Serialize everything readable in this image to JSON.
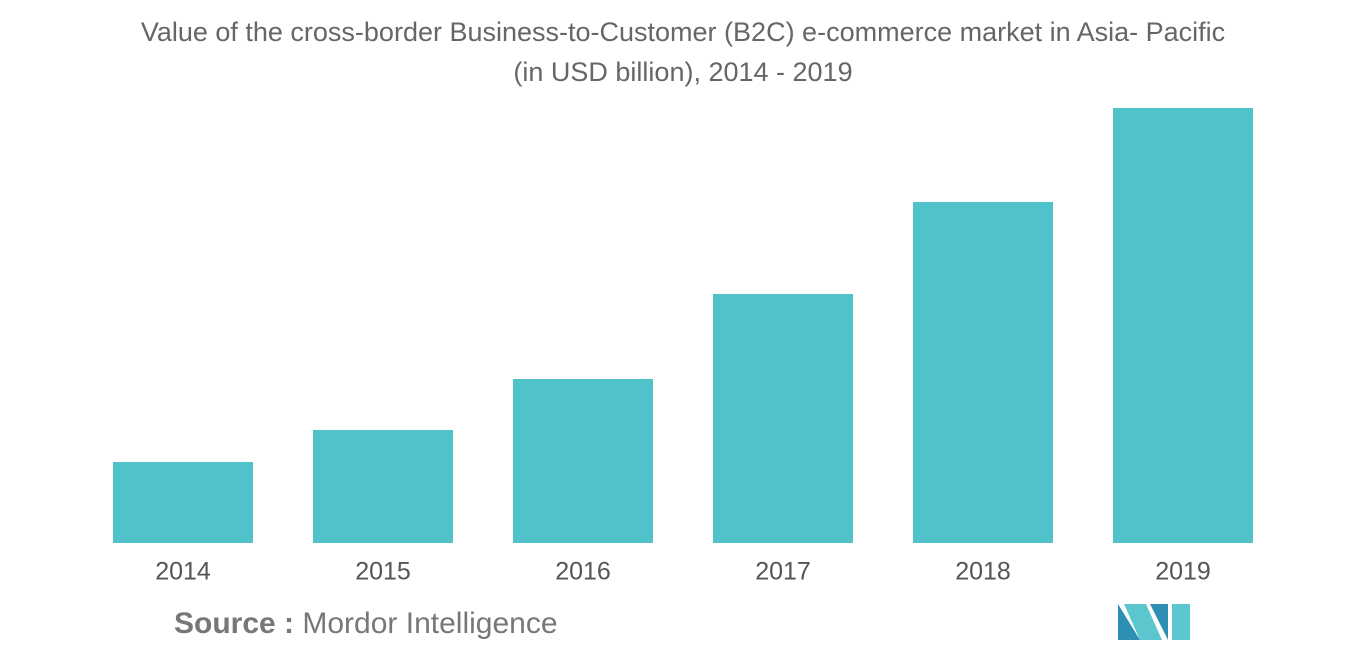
{
  "chart_data": {
    "type": "bar",
    "title": "Value of the cross-border Business-to-Customer (B2C) e-commerce market in Asia- Pacific\n(in USD billion), 2014 - 2019",
    "categories": [
      "2014",
      "2015",
      "2016",
      "2017",
      "2018",
      "2019"
    ],
    "values": [
      81,
      113,
      164,
      249,
      341,
      435
    ],
    "color": "#4fc3c9",
    "source_label": "Source :",
    "source": "Mordor Intelligence"
  }
}
